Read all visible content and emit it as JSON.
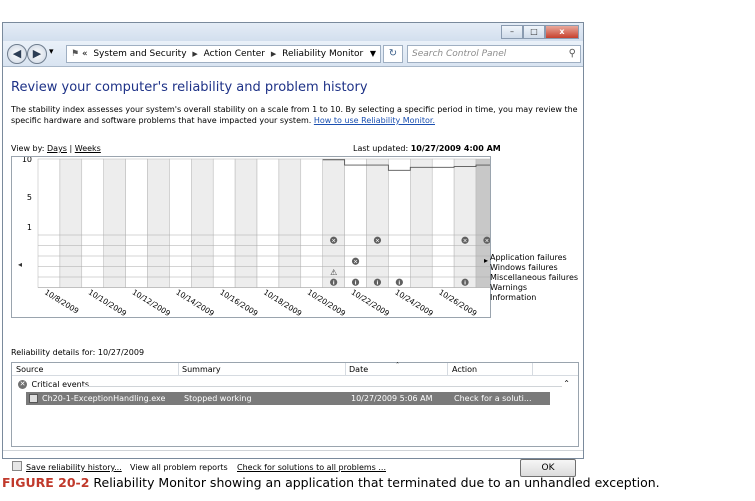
{
  "window": {
    "controls": [
      "–",
      "□",
      "x"
    ]
  },
  "address": {
    "crumbs": [
      "«",
      "System and Security",
      "Action Center",
      "Reliability Monitor"
    ],
    "search_placeholder": "Search Control Panel"
  },
  "main": {
    "heading": "Review your computer's reliability and problem history",
    "description": "The stability index assesses your system's overall stability on a scale from 1 to 10. By selecting a specific period in time, you may review the specific hardware and software problems that have impacted your system.",
    "help_link": "How to use Reliability Monitor.",
    "viewby_label": "View by:",
    "viewby_days": "Days",
    "viewby_sep": "|",
    "viewby_weeks": "Weeks",
    "last_updated_label": "Last updated:",
    "last_updated_value": "10/27/2009 4:00 AM"
  },
  "chart_data": {
    "type": "line",
    "y_ticks": [
      "10",
      "5",
      "1"
    ],
    "ylim": [
      1,
      10
    ],
    "x_labels": [
      "10/8/2009",
      "10/10/2009",
      "10/12/2009",
      "10/14/2009",
      "10/16/2009",
      "10/18/2009",
      "10/20/2009",
      "10/22/2009",
      "10/24/2009",
      "10/26/2009"
    ],
    "series": [
      {
        "name": "stability index",
        "x": [
          13,
          14,
          15,
          16,
          17,
          18,
          19,
          20
        ],
        "values": [
          9.9,
          9.2,
          9.2,
          8.5,
          8.9,
          8.9,
          9.0,
          9.2
        ]
      }
    ],
    "rows": [
      "Application failures",
      "Windows failures",
      "Miscellaneous failures",
      "Warnings",
      "Information"
    ],
    "events": {
      "Application failures": [
        13,
        15,
        19,
        20
      ],
      "Windows failures": [],
      "Miscellaneous failures": [
        14
      ],
      "Warnings": [
        13
      ],
      "Information": [
        13,
        14,
        15,
        16,
        19
      ]
    },
    "highlighted_column": 20,
    "columns": 21
  },
  "details": {
    "label": "Reliability details for: 10/27/2009",
    "columns": [
      "Source",
      "Summary",
      "Date",
      "Action"
    ],
    "group": "Critical events",
    "rows": [
      {
        "source": "Ch20-1-ExceptionHandling.exe",
        "summary": "Stopped working",
        "date": "10/27/2009 5:06 AM",
        "action": "Check for a soluti..."
      }
    ]
  },
  "footer": {
    "save": "Save reliability history...",
    "view_all": "View all problem reports",
    "check": "Check for solutions to all problems ...",
    "ok": "OK"
  },
  "caption": {
    "label": "FIGURE 20-2",
    "text": "Reliability Monitor showing an application that terminated due to an unhandled exception."
  }
}
